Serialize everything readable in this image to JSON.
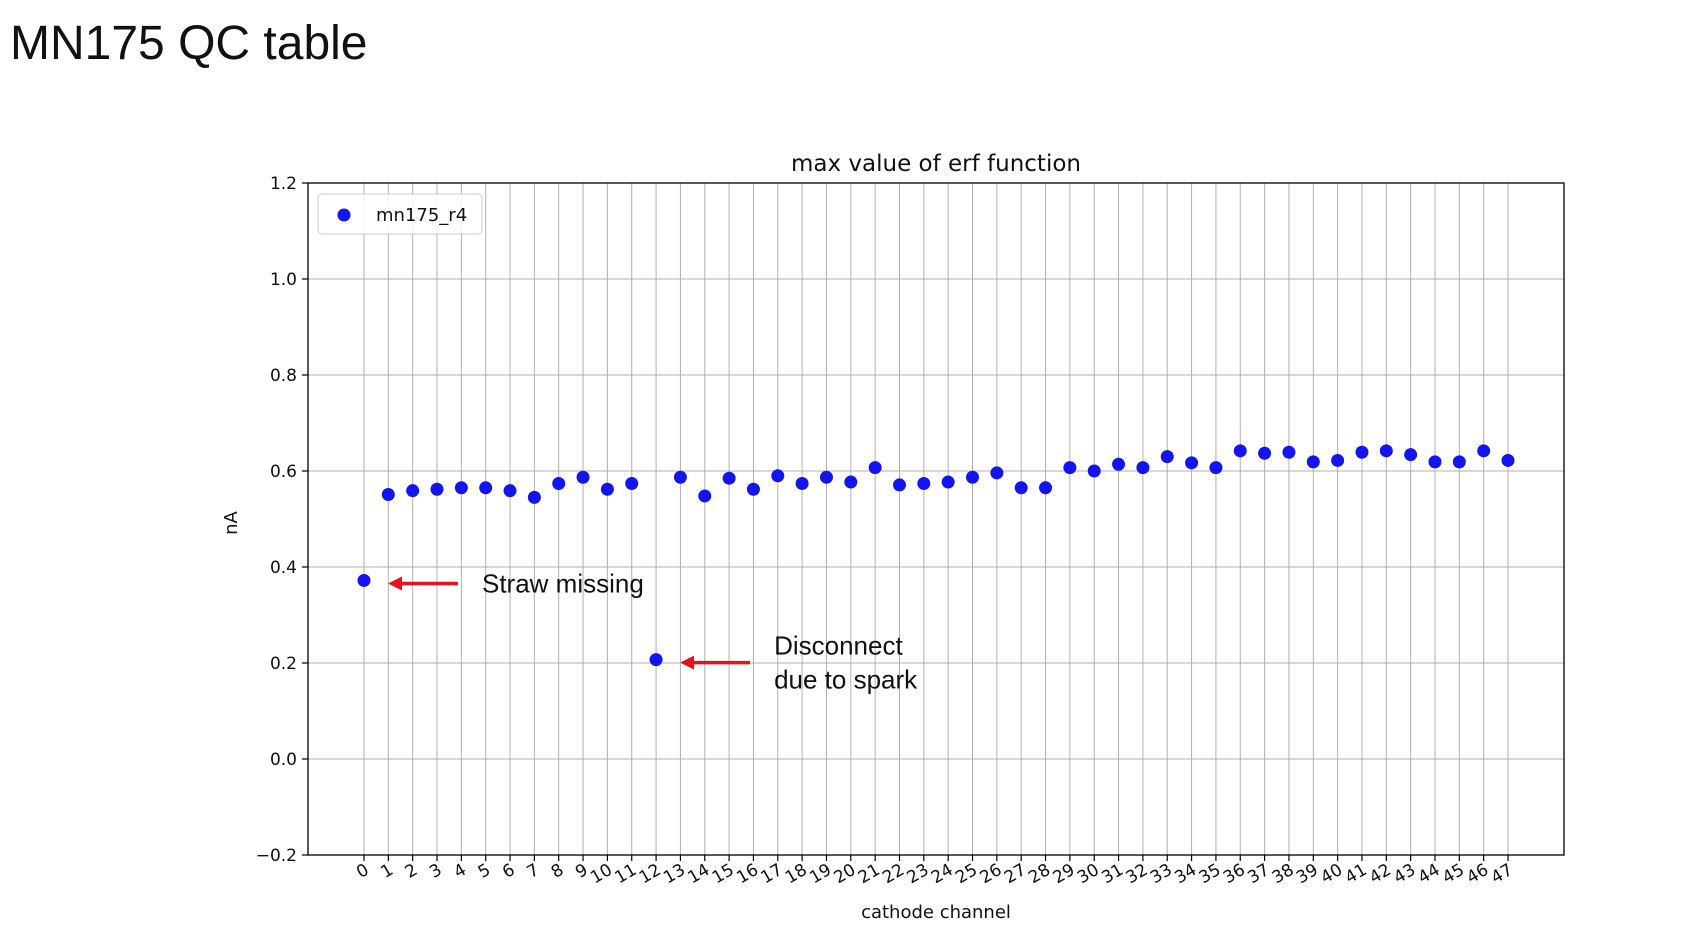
{
  "slide": {
    "title": "MN175 QC table"
  },
  "chart_data": {
    "type": "scatter",
    "title": "max value of erf function",
    "xlabel": "cathode channel",
    "ylabel": "nA",
    "ylim": [
      -0.2,
      1.2
    ],
    "yticks": [
      -0.2,
      0.0,
      0.2,
      0.4,
      0.6,
      0.8,
      1.0,
      1.2
    ],
    "ytick_labels": [
      "−0.2",
      "0.0",
      "0.2",
      "0.4",
      "0.6",
      "0.8",
      "1.0",
      "1.2"
    ],
    "xlim": [
      -2.3,
      49.3
    ],
    "xticks": [
      0,
      1,
      2,
      3,
      4,
      5,
      6,
      7,
      8,
      9,
      10,
      11,
      12,
      13,
      14,
      15,
      16,
      17,
      18,
      19,
      20,
      21,
      22,
      23,
      24,
      25,
      26,
      27,
      28,
      29,
      30,
      31,
      32,
      33,
      34,
      35,
      36,
      37,
      38,
      39,
      40,
      41,
      42,
      43,
      44,
      45,
      46,
      47
    ],
    "grid": true,
    "legend": {
      "position": "top-left"
    },
    "colors": {
      "series": "#1414f0",
      "arrow": "#e8101a",
      "grid": "#b0b0b0",
      "axis": "#000000"
    },
    "series": [
      {
        "name": "mn175_r4",
        "x": [
          0,
          1,
          2,
          3,
          4,
          5,
          6,
          7,
          8,
          9,
          10,
          11,
          12,
          13,
          14,
          15,
          16,
          17,
          18,
          19,
          20,
          21,
          22,
          23,
          24,
          25,
          26,
          27,
          28,
          29,
          30,
          31,
          32,
          33,
          34,
          35,
          36,
          37,
          38,
          39,
          40,
          41,
          42,
          43,
          44,
          45,
          46,
          47
        ],
        "y": [
          0.372,
          0.551,
          0.559,
          0.562,
          0.565,
          0.565,
          0.559,
          0.545,
          0.574,
          0.587,
          0.562,
          0.574,
          0.207,
          0.587,
          0.548,
          0.585,
          0.562,
          0.59,
          0.574,
          0.587,
          0.577,
          0.607,
          0.571,
          0.574,
          0.577,
          0.587,
          0.596,
          0.565,
          0.565,
          0.607,
          0.6,
          0.614,
          0.607,
          0.63,
          0.617,
          0.607,
          0.642,
          0.637,
          0.639,
          0.619,
          0.622,
          0.639,
          0.642,
          0.634,
          0.619,
          0.619,
          0.642,
          0.622
        ]
      }
    ],
    "annotations": [
      {
        "lines": [
          "Straw missing"
        ],
        "target": {
          "x": 0,
          "y": 0.372
        }
      },
      {
        "lines": [
          "Disconnect",
          "due to spark"
        ],
        "target": {
          "x": 12,
          "y": 0.207
        }
      }
    ]
  }
}
